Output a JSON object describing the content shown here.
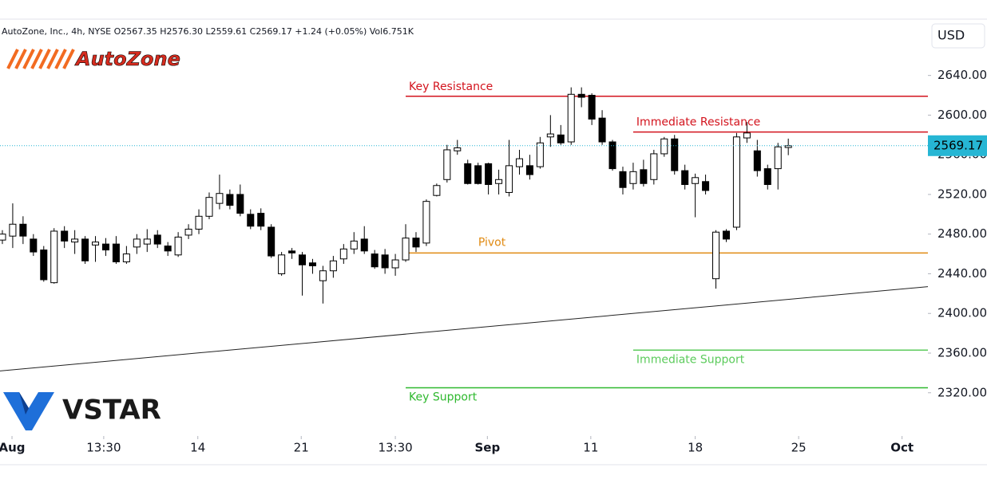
{
  "chart_data": {
    "type": "candlestick",
    "title": "AutoZone, Inc., 4h, NYSE  O2567.35  H2576.30  L2559.61  C2569.17  +1.24 (+0.05%)  Vol6.751K",
    "currency": "USD",
    "logos": [
      "AutoZone",
      "VSTAR"
    ],
    "open": [
      2474,
      2478,
      2490,
      2475,
      2464,
      2431,
      2483,
      2472,
      2475,
      2469,
      2470,
      2470,
      2452,
      2467,
      2470,
      2479,
      2468,
      2459,
      2479,
      2485,
      2498,
      2511,
      2520,
      2520,
      2500,
      2501,
      2487,
      2440,
      2463,
      2459,
      2451,
      2433,
      2443,
      2455,
      2465,
      2475,
      2460,
      2459,
      2446,
      2454,
      2476,
      2471,
      2519,
      2535,
      2564,
      2551,
      2549,
      2551,
      2531,
      2522,
      2548,
      2549,
      2548,
      2578,
      2580,
      2573,
      2621,
      2620,
      2597,
      2573,
      2543,
      2531,
      2545,
      2535,
      2561,
      2576,
      2544,
      2531,
      2533,
      2435,
      2483,
      2487,
      2577,
      2564,
      2546,
      2546,
      2567.35
    ],
    "high": [
      2484,
      2511,
      2498,
      2480,
      2468,
      2486,
      2488,
      2484,
      2478,
      2478,
      2476,
      2478,
      2468,
      2480,
      2485,
      2484,
      2472,
      2482,
      2490,
      2505,
      2522,
      2540,
      2525,
      2530,
      2505,
      2506,
      2490,
      2462,
      2466,
      2462,
      2455,
      2448,
      2458,
      2470,
      2482,
      2488,
      2464,
      2465,
      2460,
      2490,
      2482,
      2515,
      2531,
      2570,
      2575,
      2555,
      2552,
      2552,
      2545,
      2575,
      2565,
      2560,
      2578,
      2600,
      2590,
      2628,
      2628,
      2622,
      2605,
      2575,
      2548,
      2552,
      2555,
      2565,
      2578,
      2580,
      2550,
      2541,
      2540,
      2484,
      2485,
      2582,
      2593,
      2575,
      2550,
      2572,
      2576.3
    ],
    "low": [
      2470,
      2466,
      2470,
      2458,
      2432,
      2430,
      2466,
      2460,
      2450,
      2452,
      2458,
      2450,
      2450,
      2460,
      2462,
      2466,
      2458,
      2457,
      2475,
      2480,
      2495,
      2505,
      2505,
      2498,
      2485,
      2484,
      2456,
      2438,
      2455,
      2418,
      2440,
      2410,
      2436,
      2450,
      2460,
      2460,
      2445,
      2440,
      2438,
      2452,
      2462,
      2468,
      2518,
      2532,
      2560,
      2530,
      2530,
      2520,
      2520,
      2518,
      2540,
      2535,
      2546,
      2568,
      2570,
      2570,
      2608,
      2590,
      2570,
      2544,
      2520,
      2525,
      2528,
      2530,
      2558,
      2540,
      2525,
      2497,
      2520,
      2425,
      2472,
      2484,
      2572,
      2538,
      2525,
      2525,
      2559.61
    ],
    "close": [
      2480,
      2490,
      2478,
      2462,
      2434,
      2483,
      2473,
      2475,
      2453,
      2472,
      2464,
      2452,
      2460,
      2475,
      2475,
      2470,
      2463,
      2477,
      2485,
      2498,
      2517,
      2521,
      2509,
      2501,
      2488,
      2488,
      2458,
      2459,
      2461,
      2449,
      2448,
      2443,
      2453,
      2465,
      2473,
      2463,
      2447,
      2446,
      2454,
      2476,
      2467,
      2513,
      2529,
      2565,
      2567,
      2531,
      2531,
      2530,
      2535,
      2549,
      2556,
      2540,
      2572,
      2581,
      2572,
      2621,
      2618,
      2596,
      2573,
      2546,
      2527,
      2543,
      2531,
      2561,
      2576,
      2544,
      2530,
      2537,
      2524,
      2482,
      2475,
      2578,
      2582,
      2544,
      2530,
      2568,
      2569.17
    ],
    "xlim": [
      -0.23,
      89.5
    ],
    "xticks": [
      {
        "value": 0.93,
        "label": "Aug"
      },
      {
        "value": 9.8,
        "label": "13:30"
      },
      {
        "value": 18.9,
        "label": "14"
      },
      {
        "value": 28.9,
        "label": "21"
      },
      {
        "value": 38,
        "label": "13:30"
      },
      {
        "value": 46.9,
        "label": "Sep"
      },
      {
        "value": 56.9,
        "label": "11"
      },
      {
        "value": 67,
        "label": "18"
      },
      {
        "value": 77,
        "label": "25"
      },
      {
        "value": 87,
        "label": "Oct"
      }
    ],
    "ylim": [
      2278,
      2696
    ],
    "yticks": [
      {
        "value": 2320,
        "label": "2320.00"
      },
      {
        "value": 2360,
        "label": "2360.00"
      },
      {
        "value": 2400,
        "label": "2400.00"
      },
      {
        "value": 2440,
        "label": "2440.00"
      },
      {
        "value": 2480,
        "label": "2480.00"
      },
      {
        "value": 2520,
        "label": "2520.00"
      },
      {
        "value": 2560,
        "label": "2560.00"
      },
      {
        "value": 2600,
        "label": "2600.00"
      },
      {
        "value": 2640,
        "label": "2640.00"
      }
    ],
    "levels": [
      {
        "label": "Key Resistance",
        "value": 2619,
        "start": 39,
        "color": "#d3131d"
      },
      {
        "label": "Immediate Resistance",
        "value": 2583,
        "start": 61,
        "color": "#d3131d"
      },
      {
        "label": "Pivot",
        "value": 2461,
        "start": 39,
        "color": "#e08a12"
      },
      {
        "label": "Immediate Support",
        "value": 2363,
        "start": 61,
        "color": "#5ccb5c"
      },
      {
        "label": "Key Support",
        "value": 2325,
        "start": 39,
        "color": "#2eb82e"
      }
    ],
    "trendline": {
      "x": [
        -0.23,
        89.5
      ],
      "y": [
        2342,
        2427
      ]
    },
    "up_color": "#ffffff",
    "down_color": "#000000",
    "last_price_color": "#26b6d4"
  }
}
